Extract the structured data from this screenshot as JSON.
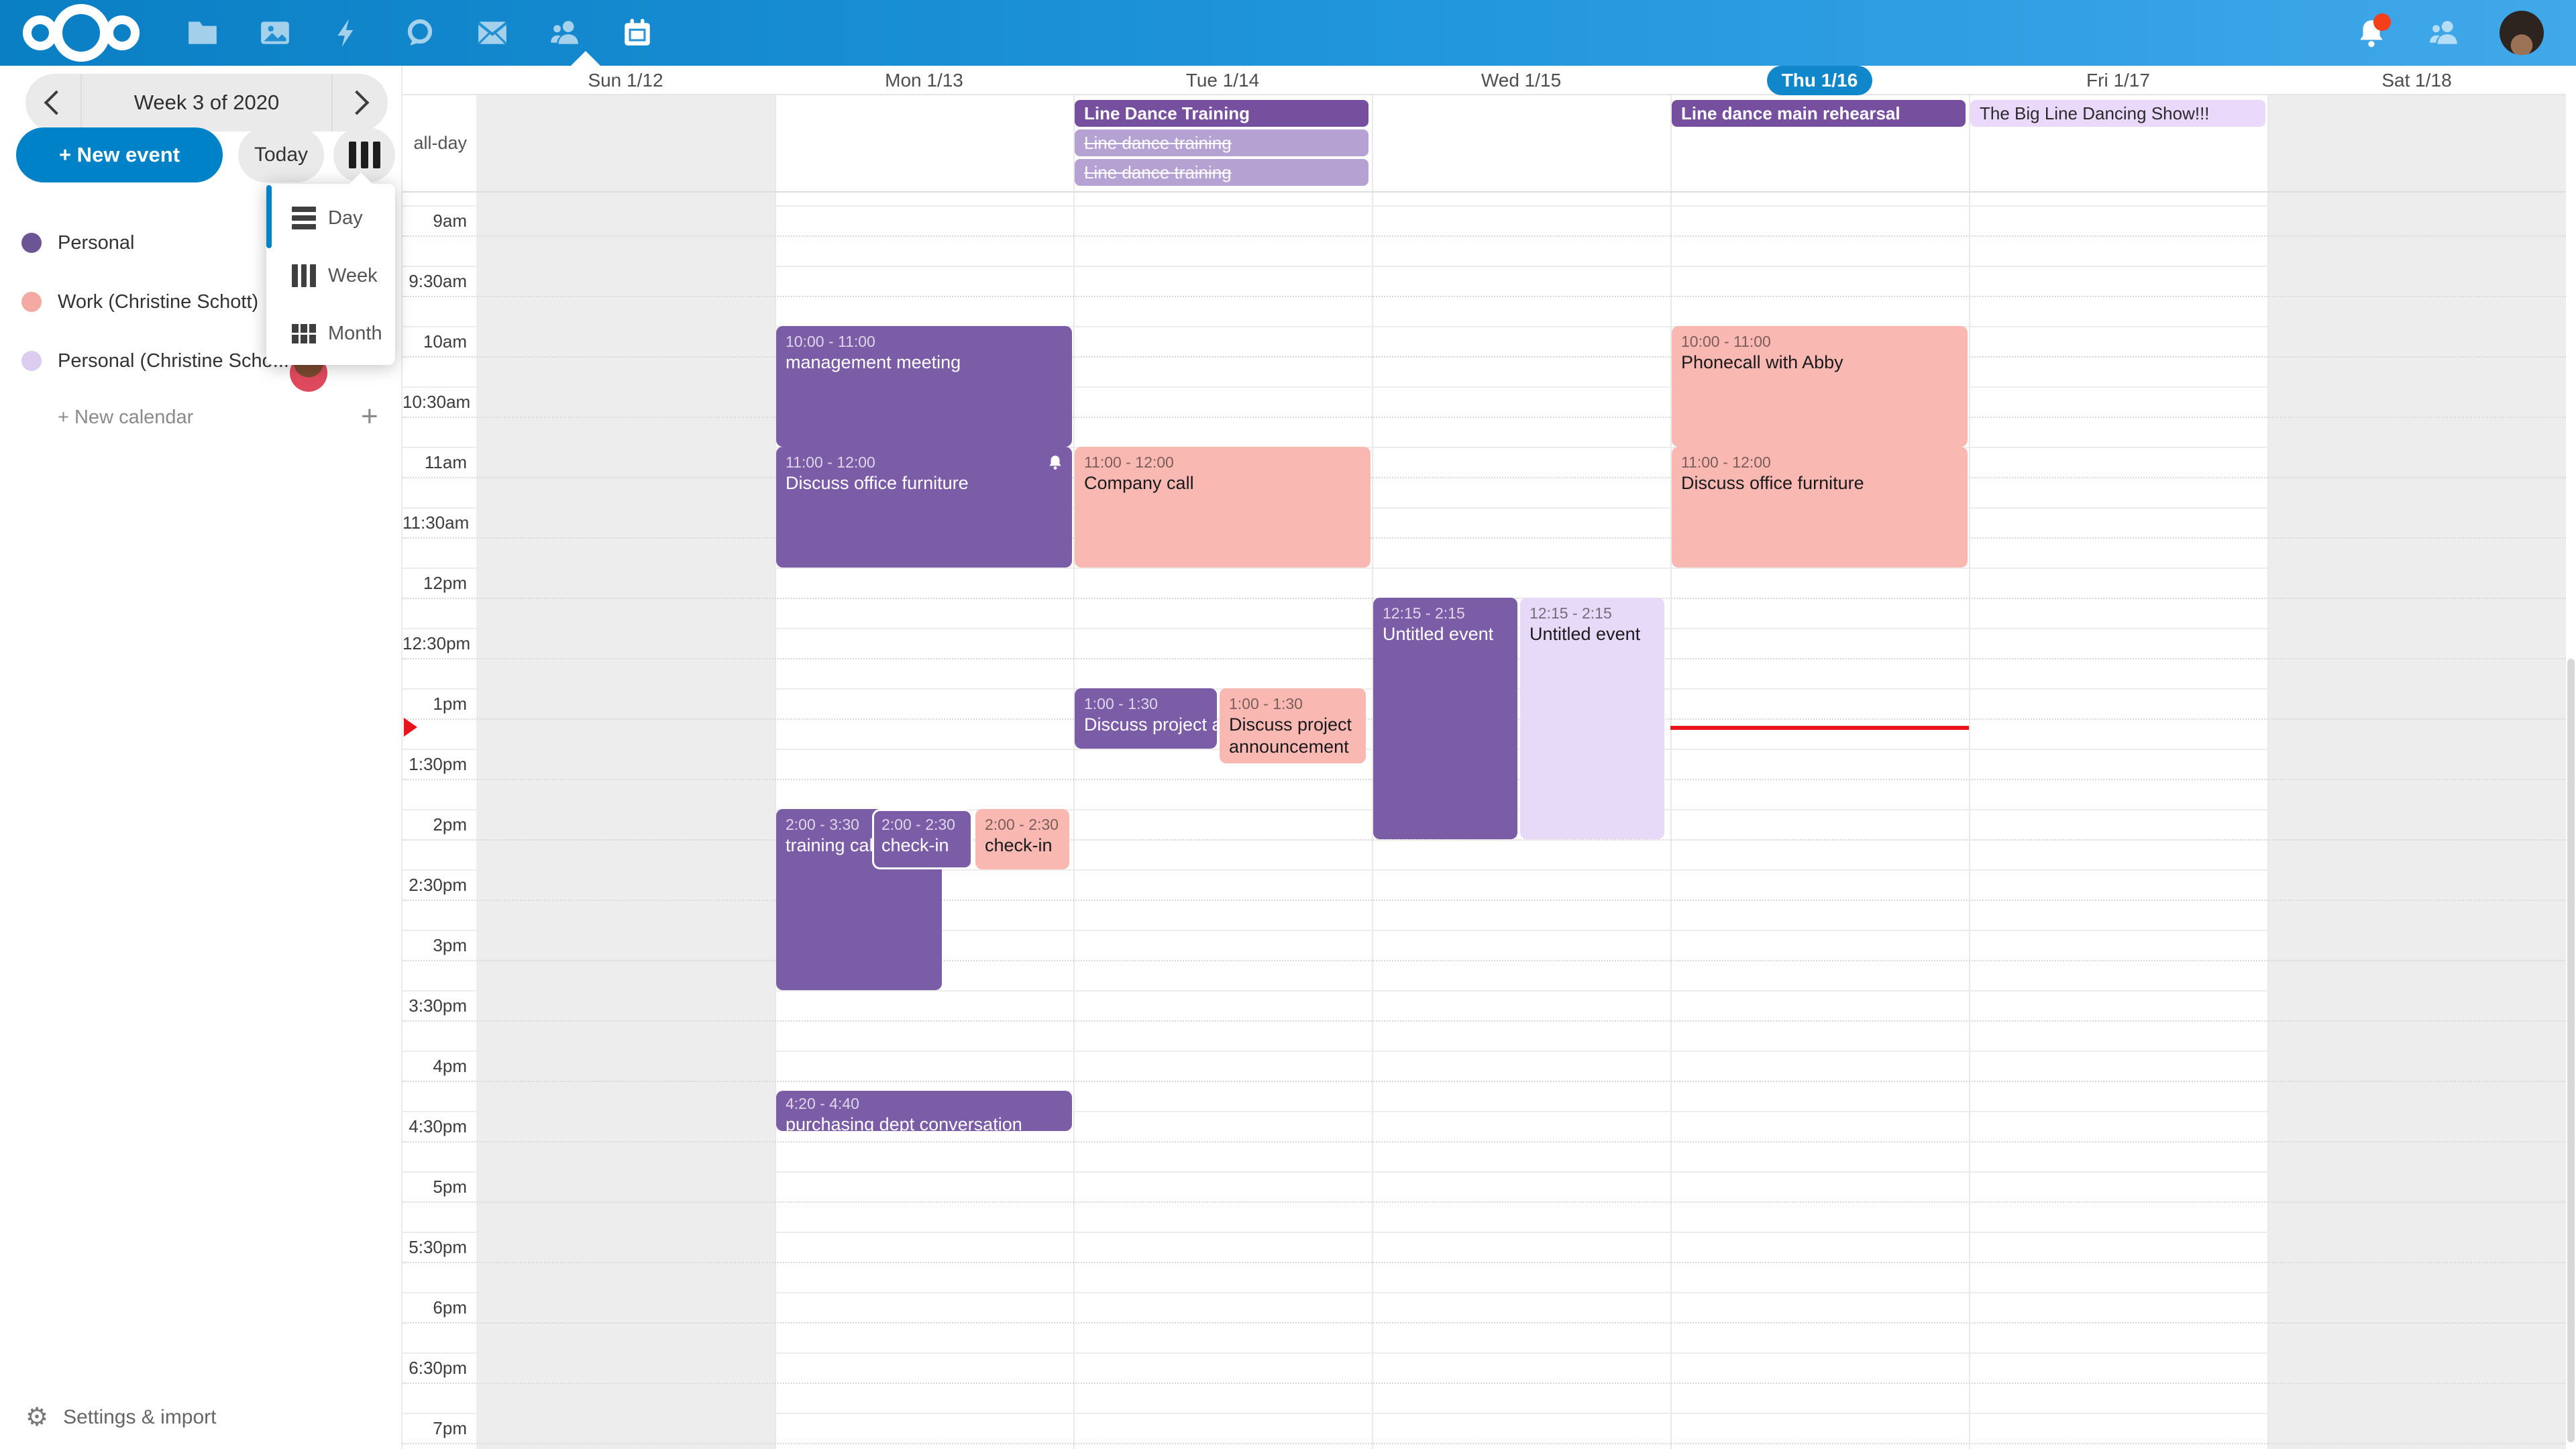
{
  "colors": {
    "topbar_gradient_left": "#0a7fc4",
    "topbar_gradient_right": "#41a8e9",
    "accent": "#0082c9",
    "today_pill": "#1187cb",
    "event_purple": "#7b5ca6",
    "event_purple_dark": "#76509f",
    "event_purple_faded": "#b5a2d3",
    "event_pink": "#f9b8b1",
    "event_lavender": "#e7d9f8",
    "event_lavender_light": "#ead9fa",
    "current_time_red": "#e8131b",
    "weekend_bg": "#ededed",
    "dot_personal": "#6d5494",
    "dot_work": "#f2aaa2",
    "dot_personal_christine": "#dccdf0"
  },
  "topbar": {
    "left_icons": [
      "nextcloud-logo",
      "files",
      "photos",
      "activity",
      "talk",
      "mail",
      "contacts",
      "calendar"
    ],
    "active_app": "calendar",
    "right_icons": [
      "notifications",
      "contacts-menu",
      "avatar"
    ],
    "notification_dot": true
  },
  "sidebar": {
    "week_label": "Week 3 of 2020",
    "new_event_label": "+ New event",
    "today_label": "Today",
    "view_menu": {
      "items": [
        {
          "label": "Day",
          "icon": "day-view-icon"
        },
        {
          "label": "Week",
          "icon": "week-view-icon"
        },
        {
          "label": "Month",
          "icon": "month-view-icon"
        }
      ]
    },
    "calendars": [
      {
        "name": "Personal",
        "color": "#6d5494"
      },
      {
        "name": "Work (Christine Schott)",
        "color": "#f2aaa2"
      },
      {
        "name": "Personal (Christine Scho...",
        "color": "#dccdf0",
        "shared_avatar": true,
        "more_menu": true
      }
    ],
    "new_calendar_label": "+ New calendar",
    "settings_label": "Settings & import"
  },
  "calendar": {
    "days": [
      {
        "label": "Sun 1/12",
        "weekend": true
      },
      {
        "label": "Mon 1/13"
      },
      {
        "label": "Tue 1/14"
      },
      {
        "label": "Wed 1/15"
      },
      {
        "label": "Thu 1/16",
        "today": true
      },
      {
        "label": "Fri 1/17"
      },
      {
        "label": "Sat 1/18",
        "weekend": true
      }
    ],
    "allday_label": "all-day",
    "time_labels": [
      "9am",
      "9:30am",
      "10am",
      "10:30am",
      "11am",
      "11:30am",
      "12pm",
      "12:30pm",
      "1pm",
      "1:30pm",
      "2pm",
      "2:30pm",
      "3pm",
      "3:30pm",
      "4pm",
      "4:30pm",
      "5pm",
      "5:30pm",
      "6pm",
      "6:30pm",
      "7pm"
    ],
    "allday_events": [
      {
        "day": "Tue 1/14",
        "title": "Line Dance Training",
        "calendar": "Personal"
      },
      {
        "day": "Tue 1/14",
        "title": "Line dance training",
        "calendar": "Personal",
        "declined": true
      },
      {
        "day": "Tue 1/14",
        "title": "Line dance training",
        "calendar": "Personal",
        "declined": true
      },
      {
        "day": "Thu 1/16",
        "title": "Line dance main rehearsal",
        "calendar": "Personal"
      },
      {
        "day": "Fri 1/17",
        "title": "The Big Line Dancing Show!!!",
        "calendar": "Personal (Christine Scho..."
      }
    ],
    "events": [
      {
        "day": "Mon 1/13",
        "time": "10:00 - 11:00",
        "title": "management meeting",
        "calendar": "Personal"
      },
      {
        "day": "Mon 1/13",
        "time": "11:00 - 12:00",
        "title": "Discuss office furniture",
        "calendar": "Personal",
        "reminder": true
      },
      {
        "day": "Tue 1/14",
        "time": "11:00 - 12:00",
        "title": "Company call",
        "calendar": "Work (Christine Schott)"
      },
      {
        "day": "Tue 1/14",
        "time": "1:00 - 1:30",
        "title": "Discuss project announcement",
        "calendar": "Personal"
      },
      {
        "day": "Tue 1/14",
        "time": "1:00 - 1:30",
        "title": "Discuss project announcement",
        "calendar": "Work (Christine Schott)"
      },
      {
        "day": "Wed 1/15",
        "time": "12:15 - 2:15",
        "title": "Untitled event",
        "calendar": "Personal"
      },
      {
        "day": "Wed 1/15",
        "time": "12:15 - 2:15",
        "title": "Untitled event",
        "calendar": "Personal (Christine Scho..."
      },
      {
        "day": "Thu 1/16",
        "time": "10:00 - 11:00",
        "title": "Phonecall with Abby",
        "calendar": "Work (Christine Schott)"
      },
      {
        "day": "Thu 1/16",
        "time": "11:00 - 12:00",
        "title": "Discuss office furniture",
        "calendar": "Work (Christine Schott)"
      },
      {
        "day": "Mon 1/13",
        "time": "2:00 - 3:30",
        "title": "training call",
        "calendar": "Personal"
      },
      {
        "day": "Mon 1/13",
        "time": "2:00 - 2:30",
        "title": "check-in",
        "calendar": "Personal"
      },
      {
        "day": "Mon 1/13",
        "time": "2:00 - 2:30",
        "title": "check-in",
        "calendar": "Work (Christine Schott)"
      },
      {
        "day": "Mon 1/13",
        "time": "4:20 - 4:40",
        "title": "purchasing dept conversation",
        "calendar": "Personal"
      }
    ],
    "current_time_indicator": {
      "day": "Thu 1/16"
    }
  }
}
